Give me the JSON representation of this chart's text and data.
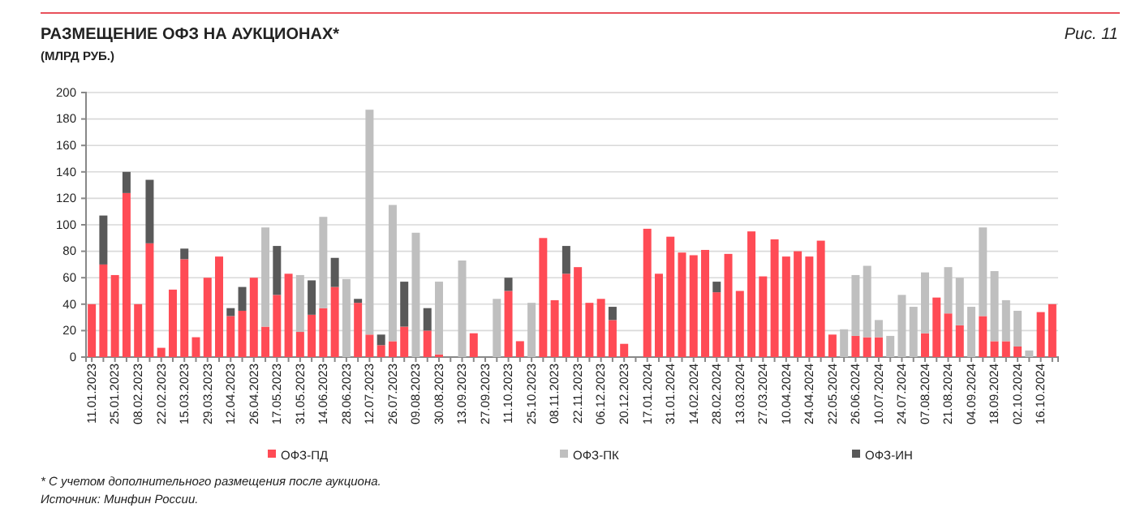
{
  "chart_data": {
    "type": "bar",
    "title": "РАЗМЕЩЕНИЕ ОФЗ НА АУКЦИОНАХ*",
    "subtitle": "(МЛРД РУБ.)",
    "annotations": [
      "Рис. 11",
      "* С учетом дополнительного размещения после аукциона.",
      "Источник: Минфин России."
    ],
    "categories": [
      "11.01.2023",
      null,
      "25.01.2023",
      null,
      "08.02.2023",
      null,
      "22.02.2023",
      null,
      "15.03.2023",
      null,
      "29.03.2023",
      null,
      "12.04.2023",
      null,
      "26.04.2023",
      null,
      "17.05.2023",
      null,
      "31.05.2023",
      null,
      "14.06.2023",
      null,
      "28.06.2023",
      null,
      "12.07.2023",
      null,
      "26.07.2023",
      null,
      "09.08.2023",
      null,
      "30.08.2023",
      null,
      "13.09.2023",
      null,
      "27.09.2023",
      null,
      "11.10.2023",
      null,
      "25.10.2023",
      null,
      "08.11.2023",
      null,
      "22.11.2023",
      null,
      "06.12.2023",
      null,
      "20.12.2023",
      null,
      "17.01.2024",
      null,
      "31.01.2024",
      null,
      "14.02.2024",
      null,
      "28.02.2024",
      null,
      "13.03.2024",
      null,
      "27.03.2024",
      null,
      "10.04.2024",
      null,
      "24.04.2024",
      null,
      "22.05.2024",
      null,
      "26.06.2024",
      null,
      "10.07.2024",
      null,
      "24.07.2024",
      null,
      "07.08.2024",
      null,
      "21.08.2024",
      null,
      "04.09.2024",
      null,
      "18.09.2024",
      null,
      "02.10.2024",
      null,
      "16.10.2024",
      null
    ],
    "stacked": true,
    "series": [
      {
        "name": "ОФЗ-ПД",
        "color": "#ff4b55",
        "values": [
          40,
          70,
          62,
          124,
          40,
          86,
          7,
          51,
          74,
          15,
          60,
          76,
          31,
          35,
          60,
          23,
          47,
          63,
          19,
          32,
          37,
          53,
          null,
          41,
          17,
          9,
          12,
          23,
          null,
          20,
          2,
          null,
          null,
          18,
          null,
          null,
          50,
          12,
          null,
          90,
          43,
          63,
          68,
          41,
          44,
          28,
          10,
          null,
          97,
          63,
          91,
          79,
          77,
          81,
          49,
          78,
          50,
          95,
          61,
          89,
          76,
          80,
          76,
          88,
          17,
          null,
          16,
          15,
          15,
          null,
          null,
          null,
          18,
          45,
          33,
          24,
          null,
          31,
          12,
          12,
          8,
          null,
          34,
          40
        ]
      },
      {
        "name": "ОФЗ-ПК",
        "color": "#bfbfbf",
        "values": [
          null,
          null,
          null,
          null,
          null,
          null,
          null,
          null,
          null,
          null,
          null,
          null,
          null,
          null,
          null,
          75,
          null,
          null,
          43,
          null,
          69,
          null,
          59,
          null,
          170,
          null,
          103,
          null,
          94,
          null,
          55,
          null,
          73,
          null,
          null,
          44,
          null,
          null,
          41,
          null,
          null,
          null,
          null,
          null,
          null,
          null,
          null,
          null,
          null,
          null,
          null,
          null,
          null,
          null,
          null,
          null,
          null,
          null,
          null,
          null,
          null,
          null,
          null,
          null,
          null,
          21,
          46,
          54,
          13,
          16,
          47,
          38,
          46,
          null,
          35,
          36,
          38,
          67,
          53,
          31,
          27,
          5,
          null,
          null
        ]
      },
      {
        "name": "ОФЗ-ИН",
        "color": "#595959",
        "values": [
          null,
          37,
          null,
          16,
          null,
          48,
          null,
          null,
          8,
          null,
          null,
          null,
          6,
          18,
          null,
          null,
          37,
          null,
          null,
          26,
          null,
          22,
          null,
          3,
          null,
          8,
          null,
          34,
          null,
          17,
          null,
          null,
          null,
          null,
          null,
          null,
          10,
          null,
          null,
          null,
          null,
          21,
          null,
          null,
          null,
          10,
          null,
          null,
          null,
          null,
          null,
          null,
          null,
          null,
          8,
          null,
          null,
          null,
          null,
          null,
          null,
          null,
          null,
          null,
          null,
          null,
          null,
          null,
          null,
          null,
          null,
          null,
          null,
          null,
          null,
          null,
          null,
          null,
          null,
          null,
          null,
          null,
          null,
          null
        ]
      }
    ],
    "ylim": [
      0,
      200
    ],
    "yticks": [
      0,
      20,
      40,
      60,
      80,
      100,
      120,
      140,
      160,
      180,
      200
    ],
    "grid": "y",
    "legend": "bottom"
  }
}
